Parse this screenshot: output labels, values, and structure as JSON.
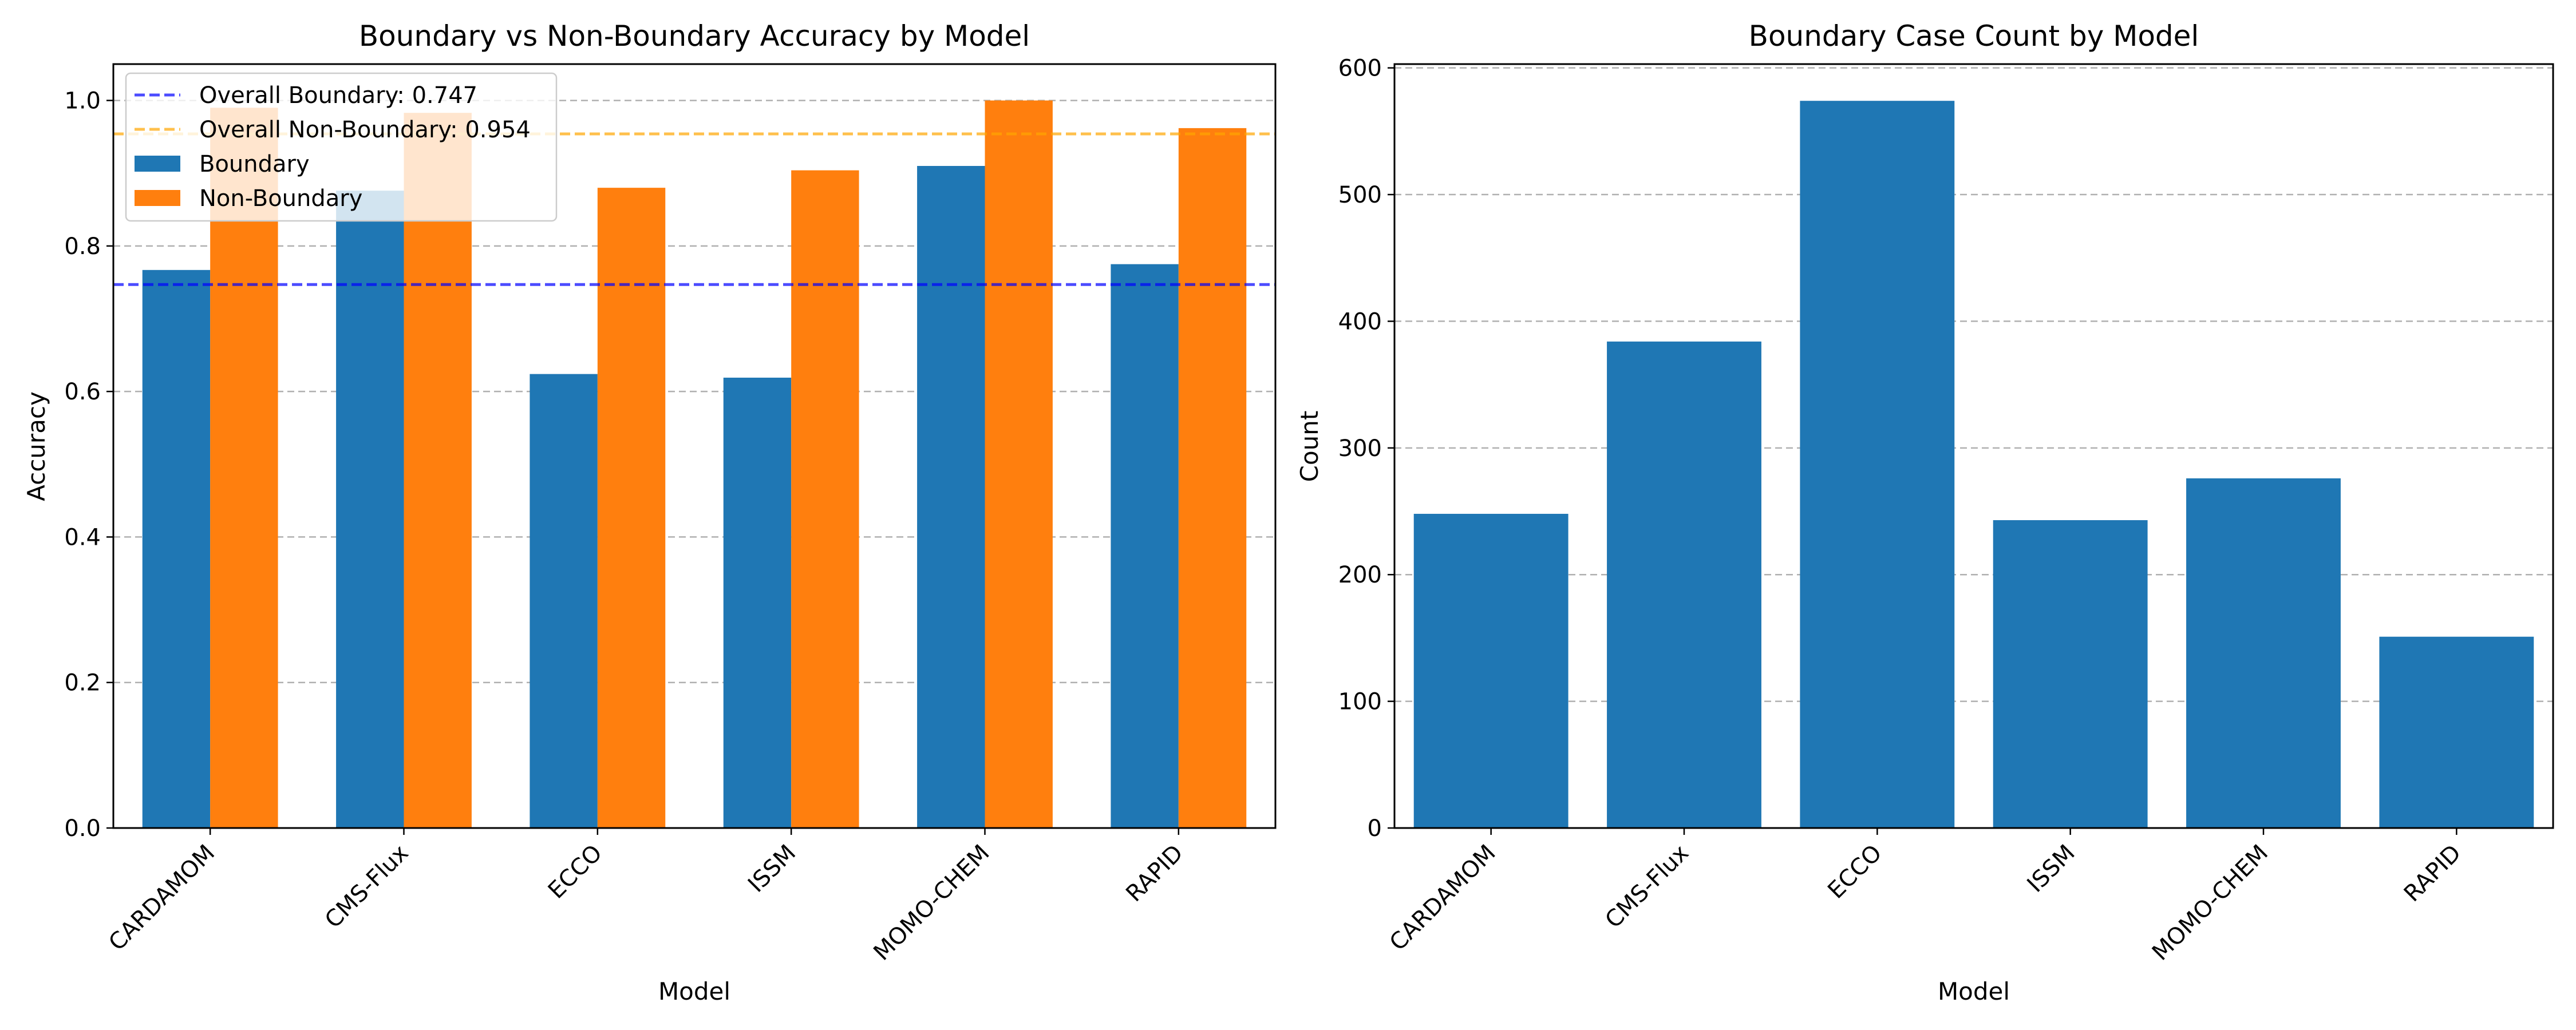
{
  "chart_data": [
    {
      "type": "bar",
      "title": "Boundary vs Non-Boundary Accuracy by Model",
      "xlabel": "Model",
      "ylabel": "Accuracy",
      "categories": [
        "CARDAMOM",
        "CMS-Flux",
        "ECCO",
        "ISSM",
        "MOMO-CHEM",
        "RAPID"
      ],
      "series": [
        {
          "name": "Boundary",
          "color": "#1f77b4",
          "values": [
            0.767,
            0.876,
            0.624,
            0.619,
            0.91,
            0.775
          ]
        },
        {
          "name": "Non-Boundary",
          "color": "#ff7f0e",
          "values": [
            0.99,
            0.983,
            0.88,
            0.904,
            1.0,
            0.962
          ]
        }
      ],
      "reference_lines": [
        {
          "label": "Overall Boundary: 0.747",
          "value": 0.747,
          "color": "#0000ff",
          "style": "dashed"
        },
        {
          "label": "Overall Non-Boundary: 0.954",
          "value": 0.954,
          "color": "#ffa500",
          "style": "dashed"
        }
      ],
      "ylim": [
        0,
        1.05
      ],
      "yticks": [
        "0.0",
        "0.2",
        "0.4",
        "0.6",
        "0.8",
        "1.0"
      ],
      "grid": "y-dashed",
      "legend": "top-left"
    },
    {
      "type": "bar",
      "title": "Boundary Case Count by Model",
      "xlabel": "Model",
      "ylabel": "Count",
      "categories": [
        "CARDAMOM",
        "CMS-Flux",
        "ECCO",
        "ISSM",
        "MOMO-CHEM",
        "RAPID"
      ],
      "series": [
        {
          "color": "#1f77b4",
          "values": [
            248,
            384,
            574,
            243,
            276,
            151
          ]
        }
      ],
      "ylim": [
        0,
        603
      ],
      "yticks": [
        "0",
        "100",
        "200",
        "300",
        "400",
        "500",
        "600"
      ],
      "grid": "y-dashed"
    }
  ]
}
